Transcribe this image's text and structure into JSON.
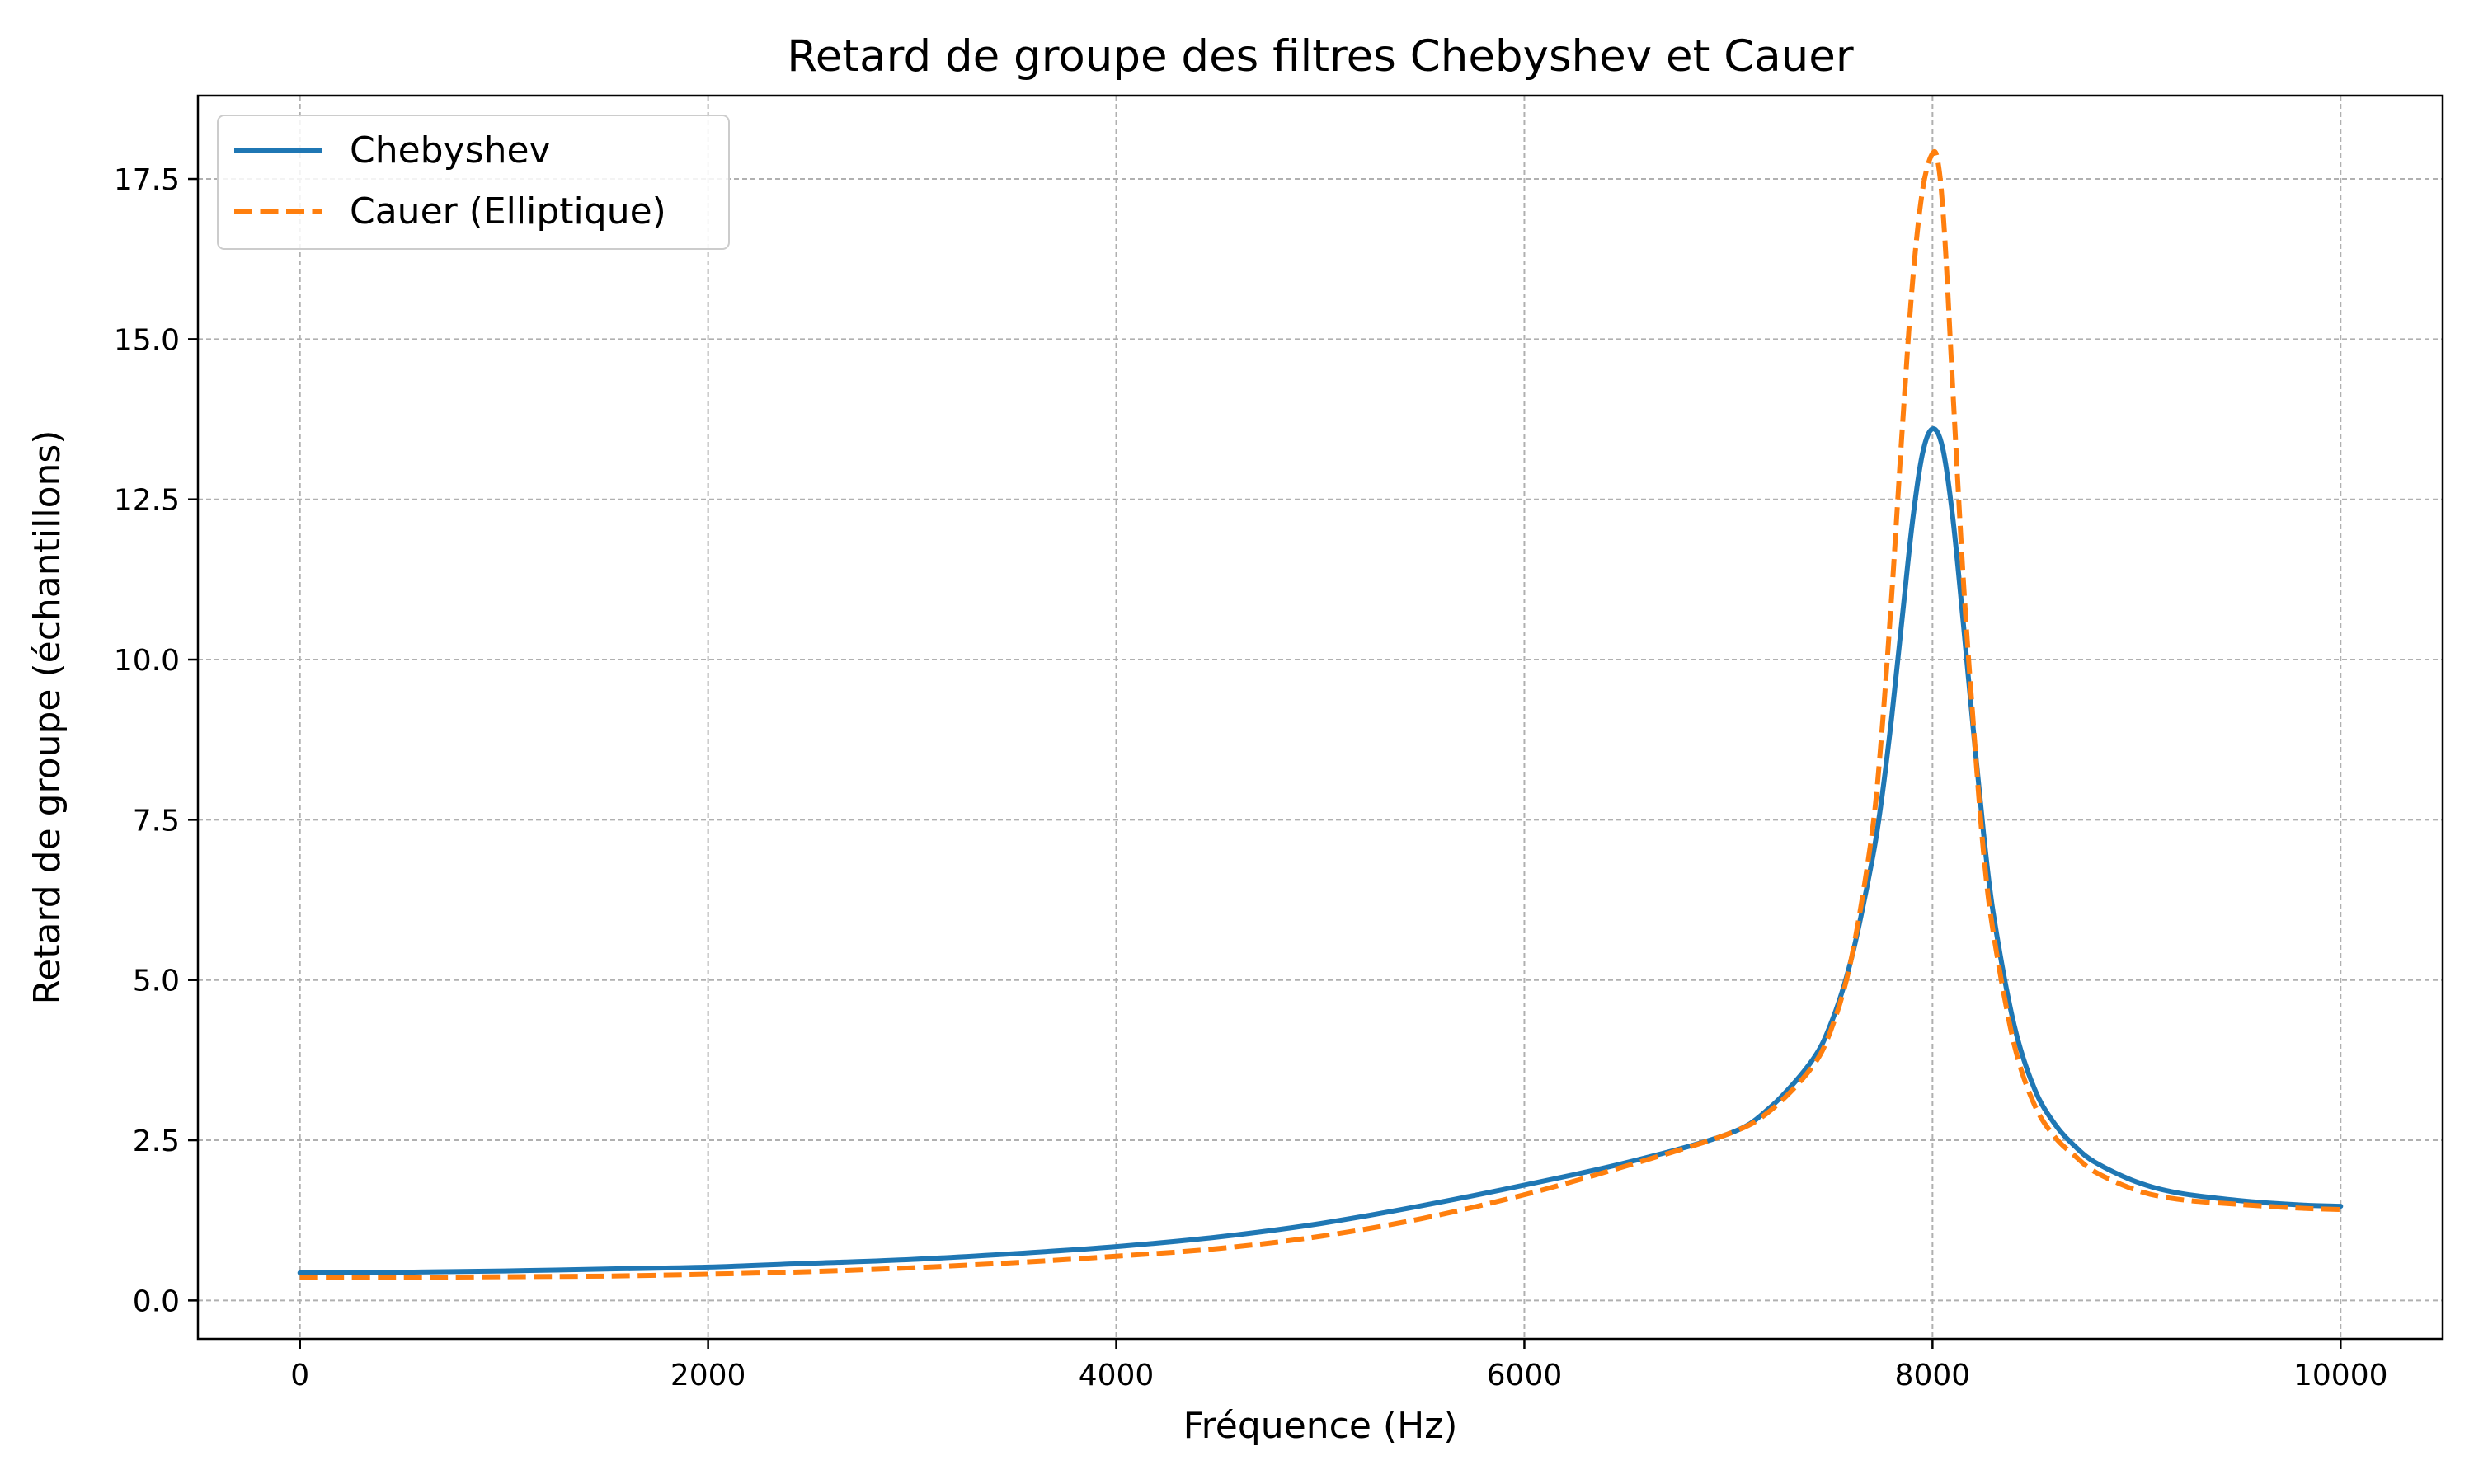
{
  "chart_data": {
    "type": "line",
    "title": "Retard de groupe des filtres Chebyshev et Cauer",
    "xlabel": "Fréquence (Hz)",
    "ylabel": "Retard de groupe (échantillons)",
    "xlim": [
      -500,
      10500
    ],
    "ylim": [
      -0.6,
      18.8
    ],
    "xticks": [
      0,
      2000,
      4000,
      6000,
      8000,
      10000
    ],
    "xtick_labels": [
      "0",
      "2000",
      "4000",
      "6000",
      "8000",
      "10000"
    ],
    "yticks": [
      0,
      2.5,
      5,
      7.5,
      10,
      12.5,
      15,
      17.5
    ],
    "ytick_labels": [
      "0.0",
      "2.5",
      "5.0",
      "7.5",
      "10.0",
      "12.5",
      "15.0",
      "17.5"
    ],
    "grid": true,
    "legend_position": "top-left",
    "series": [
      {
        "name": "Chebyshev",
        "color": "#1f77b4",
        "style": "solid",
        "x": [
          0,
          500,
          1000,
          1500,
          2000,
          2500,
          3000,
          3500,
          4000,
          4500,
          5000,
          5500,
          6000,
          6500,
          7000,
          7200,
          7400,
          7500,
          7600,
          7700,
          7750,
          7800,
          7850,
          7900,
          7950,
          8000,
          8050,
          8100,
          8150,
          8200,
          8250,
          8300,
          8400,
          8500,
          8600,
          8700,
          8800,
          9000,
          9200,
          9500,
          9800,
          10000
        ],
        "y": [
          0.43,
          0.44,
          0.46,
          0.49,
          0.52,
          0.58,
          0.64,
          0.73,
          0.84,
          0.99,
          1.2,
          1.48,
          1.8,
          2.15,
          2.6,
          3.0,
          3.7,
          4.3,
          5.3,
          6.8,
          7.8,
          9.1,
          10.6,
          12.1,
          13.2,
          13.6,
          13.3,
          12.2,
          10.6,
          8.9,
          7.3,
          6.0,
          4.3,
          3.3,
          2.75,
          2.4,
          2.15,
          1.85,
          1.68,
          1.56,
          1.49,
          1.47
        ]
      },
      {
        "name": "Cauer (Elliptique)",
        "color": "#ff7f0e",
        "style": "dashed",
        "x": [
          0,
          500,
          1000,
          1500,
          2000,
          2500,
          3000,
          3500,
          4000,
          4500,
          5000,
          5500,
          6000,
          6500,
          7000,
          7200,
          7400,
          7500,
          7600,
          7700,
          7750,
          7800,
          7850,
          7900,
          7950,
          8000,
          8030,
          8060,
          8100,
          8150,
          8200,
          8250,
          8300,
          8400,
          8500,
          8600,
          8700,
          8800,
          9000,
          9200,
          9500,
          9800,
          10000
        ],
        "y": [
          0.36,
          0.36,
          0.37,
          0.38,
          0.41,
          0.45,
          0.51,
          0.59,
          0.69,
          0.81,
          1.0,
          1.28,
          1.65,
          2.1,
          2.6,
          2.95,
          3.6,
          4.2,
          5.3,
          7.2,
          8.8,
          11.0,
          13.5,
          15.8,
          17.3,
          17.9,
          17.7,
          16.6,
          14.2,
          11.3,
          9.0,
          7.0,
          5.7,
          4.0,
          3.05,
          2.55,
          2.25,
          2.0,
          1.72,
          1.58,
          1.5,
          1.44,
          1.42
        ]
      }
    ]
  }
}
